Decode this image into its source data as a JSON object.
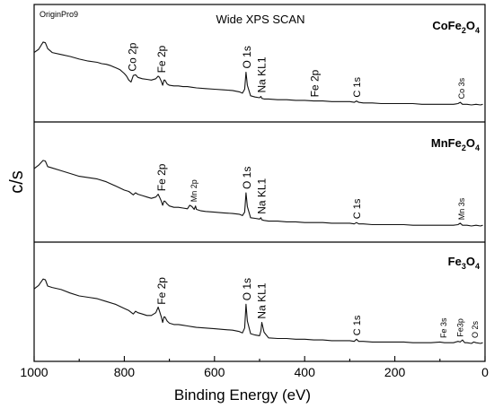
{
  "chart_data": {
    "type": "line",
    "watermark": "OriginPro9",
    "title": "Wide XPS SCAN",
    "xlabel": "Binding Energy (eV)",
    "ylabel": "c/s",
    "xlim": [
      1000,
      0
    ],
    "x_reversed": true,
    "x_ticks": [
      "1000",
      "800",
      "600",
      "400",
      "200",
      "0"
    ],
    "y_ticks_shown": false,
    "panels": [
      {
        "id": "cofe",
        "sample_parts": [
          "CoFe",
          "2",
          "O",
          "4"
        ],
        "series": [
          {
            "x": [
              1000,
              990,
              980,
              975,
              970,
              960,
              940,
              920,
              900,
              880,
              860,
              850,
              840,
              830,
              820,
              810,
              800,
              795,
              790,
              785,
              780,
              775,
              770,
              760,
              750,
              740,
              730,
              725,
              722,
              718,
              715,
              712,
              710,
              705,
              700,
              690,
              680,
              670,
              660,
              650,
              640,
              620,
              600,
              580,
              560,
              545,
              538,
              533,
              530,
              527,
              520,
              510,
              500,
              497,
              495,
              490,
              480,
              460,
              440,
              420,
              400,
              380,
              360,
              340,
              320,
              300,
              290,
              285,
              280,
              270,
              250,
              230,
              200,
              180,
              160,
              140,
              120,
              100,
              90,
              80,
              70,
              60,
              55,
              50,
              45,
              40,
              30,
              20,
              10,
              5
            ],
            "y": [
              80,
              85,
              96,
              95,
              86,
              80,
              77,
              74,
              70,
              67,
              65,
              63,
              62,
              60,
              57,
              54,
              48,
              44,
              38,
              35,
              45,
              46,
              42,
              40,
              39,
              38,
              40,
              44,
              42,
              36,
              30,
              38,
              38,
              32,
              30,
              29,
              29,
              28,
              28,
              27,
              26,
              25,
              24,
              23,
              22,
              20,
              18,
              24,
              50,
              30,
              14,
              12,
              11,
              13,
              10,
              9,
              9,
              8,
              8,
              7,
              7,
              6,
              6,
              5,
              5,
              5,
              4,
              6,
              4,
              3,
              3,
              2,
              2,
              2,
              2,
              1,
              1,
              1,
              1,
              1,
              1,
              2,
              4,
              1,
              1,
              1,
              0,
              1,
              0,
              1
            ]
          }
        ],
        "annotations": [
          {
            "label": "Co 2p",
            "x": 782,
            "size": "large"
          },
          {
            "label": "Fe 2p",
            "x": 718,
            "size": "large"
          },
          {
            "label": "O 1s",
            "x": 528,
            "size": "large"
          },
          {
            "label": "Na KL1",
            "x": 495,
            "size": "large"
          },
          {
            "label": "Fe 2p",
            "x": 378,
            "size": "large"
          },
          {
            "label": "C 1s",
            "x": 285,
            "size": "medium"
          },
          {
            "label": "Co 3s",
            "x": 52,
            "size": "small"
          }
        ]
      },
      {
        "id": "mnfe",
        "sample_parts": [
          "MnFe",
          "2",
          "O",
          "4"
        ],
        "series": [
          {
            "x": [
              1000,
              990,
              980,
              975,
              970,
              960,
              940,
              920,
              900,
              880,
              860,
              840,
              820,
              800,
              790,
              780,
              775,
              770,
              760,
              750,
              740,
              730,
              725,
              722,
              718,
              715,
              712,
              710,
              705,
              700,
              690,
              680,
              670,
              660,
              655,
              650,
              645,
              642,
              640,
              630,
              620,
              600,
              580,
              560,
              545,
              538,
              533,
              530,
              527,
              520,
              510,
              500,
              497,
              495,
              490,
              480,
              460,
              440,
              420,
              400,
              380,
              360,
              340,
              320,
              300,
              290,
              285,
              280,
              270,
              250,
              230,
              200,
              180,
              160,
              140,
              120,
              100,
              90,
              80,
              70,
              60,
              55,
              50,
              45,
              40,
              30,
              20,
              10,
              5
            ],
            "y": [
              83,
              88,
              95,
              94,
              86,
              84,
              80,
              76,
              72,
              70,
              68,
              64,
              58,
              52,
              50,
              45,
              48,
              46,
              44,
              42,
              40,
              42,
              46,
              42,
              36,
              30,
              36,
              36,
              32,
              29,
              27,
              27,
              26,
              25,
              30,
              28,
              24,
              29,
              24,
              22,
              21,
              20,
              19,
              18,
              17,
              15,
              20,
              48,
              28,
              12,
              11,
              10,
              12,
              9,
              8,
              7,
              7,
              6,
              6,
              5,
              5,
              5,
              4,
              4,
              4,
              3,
              5,
              3,
              3,
              2,
              2,
              2,
              2,
              1,
              1,
              1,
              1,
              1,
              1,
              1,
              2,
              4,
              1,
              1,
              1,
              0,
              1,
              0,
              1
            ]
          }
        ],
        "annotations": [
          {
            "label": "Fe 2p",
            "x": 718,
            "size": "large"
          },
          {
            "label": "Mn 2p",
            "x": 646,
            "size": "small"
          },
          {
            "label": "O 1s",
            "x": 528,
            "size": "large"
          },
          {
            "label": "Na KL1",
            "x": 495,
            "size": "large"
          },
          {
            "label": "C 1s",
            "x": 285,
            "size": "medium"
          },
          {
            "label": "Mn 3s",
            "x": 52,
            "size": "small"
          }
        ]
      },
      {
        "id": "fe3o4",
        "sample_parts": [
          "Fe",
          "3",
          "O",
          "4"
        ],
        "series": [
          {
            "x": [
              1000,
              990,
              980,
              975,
              970,
              960,
              940,
              920,
              900,
              880,
              860,
              840,
              820,
              800,
              790,
              780,
              775,
              770,
              760,
              750,
              740,
              730,
              725,
              722,
              718,
              715,
              712,
              710,
              705,
              700,
              690,
              680,
              670,
              660,
              650,
              640,
              620,
              600,
              580,
              560,
              545,
              538,
              533,
              530,
              527,
              520,
              510,
              500,
              497,
              495,
              490,
              480,
              460,
              440,
              420,
              400,
              380,
              360,
              340,
              320,
              300,
              290,
              285,
              280,
              270,
              250,
              230,
              200,
              180,
              160,
              140,
              120,
              100,
              90,
              80,
              70,
              60,
              55,
              50,
              45,
              40,
              30,
              25,
              20,
              10,
              5
            ],
            "y": [
              78,
              83,
              92,
              91,
              82,
              80,
              77,
              72,
              68,
              66,
              64,
              60,
              56,
              50,
              47,
              42,
              46,
              44,
              42,
              40,
              40,
              44,
              52,
              46,
              38,
              30,
              38,
              38,
              32,
              29,
              27,
              27,
              26,
              25,
              24,
              23,
              22,
              21,
              20,
              19,
              17,
              15,
              22,
              56,
              32,
              14,
              12,
              11,
              18,
              30,
              16,
              8,
              7,
              7,
              6,
              6,
              5,
              5,
              4,
              4,
              4,
              3,
              6,
              3,
              3,
              2,
              2,
              2,
              2,
              1,
              1,
              1,
              2,
              1,
              1,
              1,
              3,
              2,
              5,
              1,
              1,
              0,
              2,
              1,
              0,
              1
            ]
          }
        ],
        "annotations": [
          {
            "label": "Fe 2p",
            "x": 718,
            "size": "large"
          },
          {
            "label": "O 1s",
            "x": 528,
            "size": "large"
          },
          {
            "label": "Na KL1",
            "x": 495,
            "size": "large"
          },
          {
            "label": "C 1s",
            "x": 285,
            "size": "medium"
          },
          {
            "label": "Fe 3s",
            "x": 92,
            "size": "small"
          },
          {
            "label": "Fe3p",
            "x": 55,
            "size": "small"
          },
          {
            "label": "O 2s",
            "x": 22,
            "size": "small"
          }
        ]
      }
    ]
  }
}
